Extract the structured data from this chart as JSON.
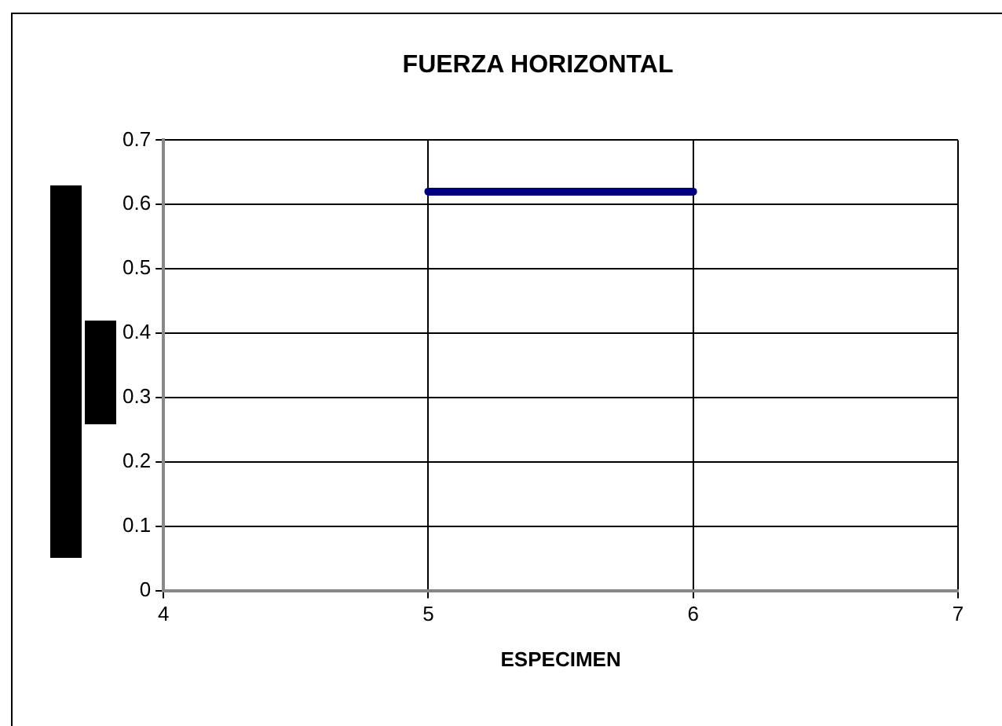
{
  "chart_data": {
    "type": "line",
    "title": "FUERZA HORIZONTAL",
    "xlabel": "ESPECIMEN",
    "x": [
      5,
      6
    ],
    "series": [
      {
        "color": "#000080",
        "values": [
          0.62,
          0.62
        ]
      }
    ],
    "xlim": [
      4,
      7
    ],
    "xticks": [
      4,
      5,
      6,
      7
    ],
    "ylim": [
      0,
      0.7
    ],
    "yticks": [
      0,
      0.1,
      0.2,
      0.3,
      0.4,
      0.5,
      0.6,
      0.7
    ],
    "grid": true,
    "legend": false,
    "marker": "none",
    "line_style": "solid"
  }
}
